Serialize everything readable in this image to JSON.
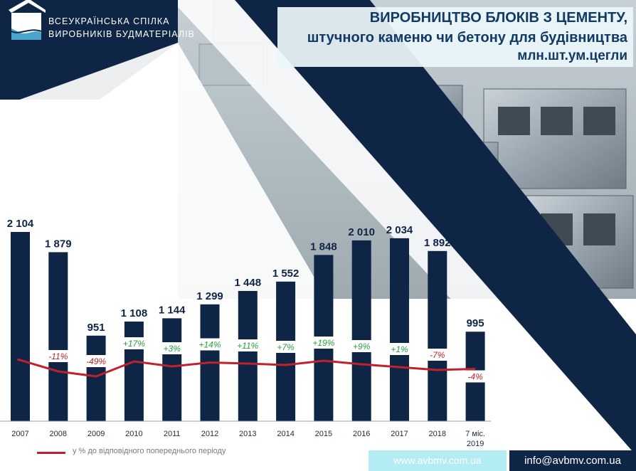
{
  "org": {
    "name_line1": "ВСЕУКРАЇНСЬКА СПІЛКА",
    "name_line2": "ВИРОБНИКІВ БУДМАТЕРІАЛІВ"
  },
  "title": {
    "line1": "ВИРОБНИЦТВО БЛОКІВ З ЦЕМЕНТУ,",
    "line2": "штучного каменю чи бетону для будівництва",
    "line3": "млн.шт.ум.цегли"
  },
  "footer": {
    "website": "www.avbmv.com.ua",
    "email": "info@avbmv.com.ua"
  },
  "colors": {
    "bar": "#0e2545",
    "line": "#c0212c",
    "positive_label": "#2a9d3f",
    "negative_label": "#c0212c",
    "title": "#123a63"
  },
  "chart_data": {
    "type": "bar",
    "categories": [
      "2007",
      "2008",
      "2009",
      "2010",
      "2011",
      "2012",
      "2013",
      "2014",
      "2015",
      "2016",
      "2017",
      "2018",
      "7 міс. 2019"
    ],
    "series": [
      {
        "values": [
          2104,
          1879,
          951,
          1108,
          1144,
          1299,
          1448,
          1552,
          1848,
          2010,
          2034,
          1892,
          995
        ],
        "value_labels": [
          "2 104",
          "1 879",
          "951",
          "1 108",
          "1 144",
          "1 299",
          "1 448",
          "1 552",
          "1 848",
          "2 010",
          "2 034",
          "1 892",
          "995"
        ]
      },
      {
        "name": "у % до відповідного попереднього періоду",
        "type": "line",
        "values": [
          null,
          -11,
          -49,
          17,
          3,
          14,
          11,
          7,
          19,
          9,
          1,
          -7,
          -4
        ],
        "value_labels": [
          "",
          "-11%",
          "-49%",
          "+17%",
          "+3%",
          "+14%",
          "+11%",
          "+7%",
          "+19%",
          "+9%",
          "+1%",
          "-7%",
          "-4%"
        ]
      }
    ],
    "ylim": [
      0,
      2200
    ],
    "grid": false,
    "legend": "bottom-left"
  }
}
